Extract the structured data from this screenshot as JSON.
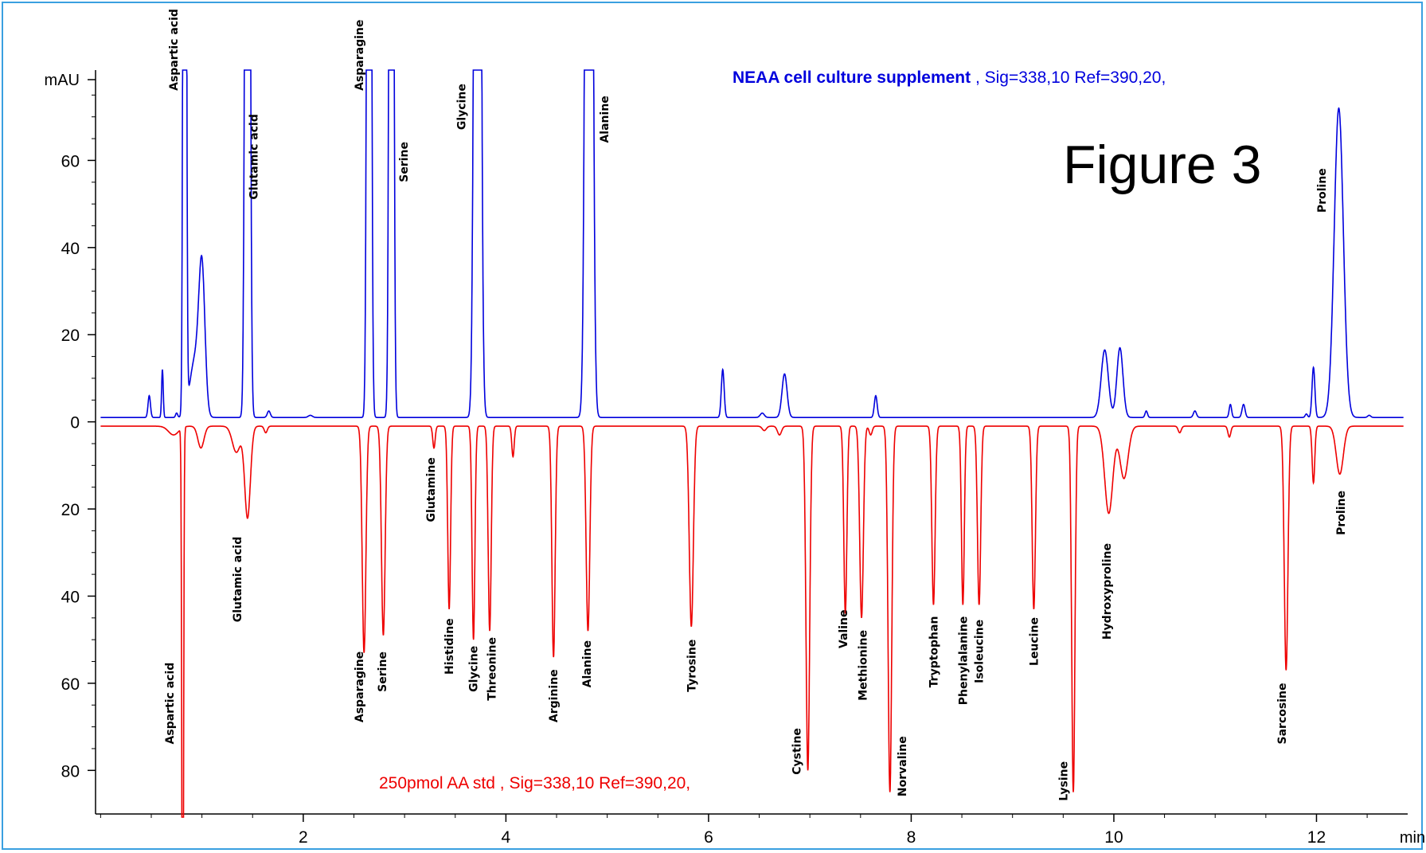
{
  "chart_data": {
    "type": "line",
    "figure_label": "Figure 3",
    "y_unit": "mAU",
    "x_unit": "min",
    "xlim": [
      -0.05,
      12.9
    ],
    "x_ticks": [
      2,
      4,
      6,
      8,
      10,
      12
    ],
    "y_ticks": [
      {
        "value": 60,
        "label": "60"
      },
      {
        "value": 40,
        "label": "40"
      },
      {
        "value": 20,
        "label": "20"
      },
      {
        "value": 0,
        "label": "0"
      },
      {
        "value": -20,
        "label": "20"
      },
      {
        "value": -40,
        "label": "40"
      },
      {
        "value": -60,
        "label": "60"
      },
      {
        "value": -80,
        "label": "80"
      }
    ],
    "ylim": [
      -90,
      80
    ],
    "series": [
      {
        "name": "NEAA cell culture supplement",
        "legend_suffix": " , Sig=338,10 Ref=390,20,",
        "color": "#0000dd",
        "baseline": 1,
        "peaks": [
          {
            "t": 0.48,
            "h": 5,
            "w": 0.012
          },
          {
            "t": 0.61,
            "h": 11,
            "w": 0.008
          },
          {
            "t": 0.75,
            "h": 1,
            "w": 0.01
          },
          {
            "t": 0.83,
            "h": 400,
            "w": 0.012
          },
          {
            "t": 0.93,
            "h": 13,
            "w": 0.05
          },
          {
            "t": 1.0,
            "h": 32,
            "w": 0.03
          },
          {
            "t": 1.45,
            "h": 400,
            "w": 0.018
          },
          {
            "t": 1.66,
            "h": 1.5,
            "w": 0.015
          },
          {
            "t": 2.07,
            "h": 0.5,
            "w": 0.02
          },
          {
            "t": 2.65,
            "h": 400,
            "w": 0.016
          },
          {
            "t": 2.87,
            "h": 400,
            "w": 0.016
          },
          {
            "t": 3.72,
            "h": 400,
            "w": 0.024
          },
          {
            "t": 4.82,
            "h": 400,
            "w": 0.026
          },
          {
            "t": 6.14,
            "h": 11,
            "w": 0.014
          },
          {
            "t": 6.53,
            "h": 1,
            "w": 0.02
          },
          {
            "t": 6.75,
            "h": 10,
            "w": 0.025
          },
          {
            "t": 7.65,
            "h": 5,
            "w": 0.014
          },
          {
            "t": 9.91,
            "h": 15.5,
            "w": 0.035
          },
          {
            "t": 10.06,
            "h": 16,
            "w": 0.03
          },
          {
            "t": 10.32,
            "h": 1.5,
            "w": 0.012
          },
          {
            "t": 10.8,
            "h": 1.5,
            "w": 0.015
          },
          {
            "t": 11.15,
            "h": 3,
            "w": 0.012
          },
          {
            "t": 11.28,
            "h": 3,
            "w": 0.015
          },
          {
            "t": 11.9,
            "h": 0.8,
            "w": 0.012
          },
          {
            "t": 11.97,
            "h": 11.5,
            "w": 0.014
          },
          {
            "t": 12.22,
            "h": 71,
            "w": 0.045
          },
          {
            "t": 12.52,
            "h": 0.5,
            "w": 0.015
          }
        ]
      },
      {
        "name": "250pmol AA std",
        "legend_suffix": "  , Sig=338,10 Ref=390,20,",
        "color": "#ee0000",
        "baseline": -1,
        "peaks": [
          {
            "t": 0.72,
            "h": -2,
            "w": 0.05
          },
          {
            "t": 0.81,
            "h": -150,
            "w": 0.008
          },
          {
            "t": 0.99,
            "h": -5,
            "w": 0.03
          },
          {
            "t": 1.34,
            "h": -6,
            "w": 0.04
          },
          {
            "t": 1.45,
            "h": -21,
            "w": 0.028
          },
          {
            "t": 1.63,
            "h": -1.5,
            "w": 0.015
          },
          {
            "t": 2.6,
            "h": -52,
            "w": 0.018
          },
          {
            "t": 2.79,
            "h": -48,
            "w": 0.018
          },
          {
            "t": 3.29,
            "h": -5,
            "w": 0.012
          },
          {
            "t": 3.44,
            "h": -42,
            "w": 0.014
          },
          {
            "t": 3.68,
            "h": -49,
            "w": 0.014
          },
          {
            "t": 3.84,
            "h": -47,
            "w": 0.015
          },
          {
            "t": 4.07,
            "h": -7,
            "w": 0.012
          },
          {
            "t": 4.47,
            "h": -53,
            "w": 0.016
          },
          {
            "t": 4.81,
            "h": -47,
            "w": 0.018
          },
          {
            "t": 5.83,
            "h": -46,
            "w": 0.02
          },
          {
            "t": 6.55,
            "h": -1,
            "w": 0.02
          },
          {
            "t": 6.7,
            "h": -2,
            "w": 0.02
          },
          {
            "t": 6.98,
            "h": -79,
            "w": 0.018
          },
          {
            "t": 7.35,
            "h": -43,
            "w": 0.015
          },
          {
            "t": 7.51,
            "h": -44,
            "w": 0.018
          },
          {
            "t": 7.6,
            "h": -2,
            "w": 0.015
          },
          {
            "t": 7.79,
            "h": -84,
            "w": 0.018
          },
          {
            "t": 8.22,
            "h": -41,
            "w": 0.016
          },
          {
            "t": 8.51,
            "h": -41,
            "w": 0.014
          },
          {
            "t": 8.67,
            "h": -41,
            "w": 0.016
          },
          {
            "t": 9.21,
            "h": -42,
            "w": 0.016
          },
          {
            "t": 9.6,
            "h": -84,
            "w": 0.016
          },
          {
            "t": 9.95,
            "h": -20,
            "w": 0.04
          },
          {
            "t": 10.1,
            "h": -12,
            "w": 0.04
          },
          {
            "t": 10.65,
            "h": -1.5,
            "w": 0.015
          },
          {
            "t": 11.14,
            "h": -2.5,
            "w": 0.014
          },
          {
            "t": 11.7,
            "h": -56,
            "w": 0.018
          },
          {
            "t": 11.97,
            "h": -13,
            "w": 0.013
          },
          {
            "t": 12.23,
            "h": -11,
            "w": 0.035
          }
        ]
      }
    ],
    "peak_labels_top": [
      {
        "t": 0.72,
        "v": 76,
        "text": "Aspartic acid"
      },
      {
        "t": 1.51,
        "v": 51,
        "text": "Glutamic acid"
      },
      {
        "t": 2.55,
        "v": 76,
        "text": "Asparagine"
      },
      {
        "t": 2.99,
        "v": 55,
        "text": "Serine"
      },
      {
        "t": 3.56,
        "v": 67,
        "text": "Glycine"
      },
      {
        "t": 4.97,
        "v": 64,
        "text": "Alanine"
      },
      {
        "t": 12.05,
        "v": 48,
        "text": "Proline"
      }
    ],
    "peak_labels_bottom": [
      {
        "t": 0.68,
        "v": -74,
        "text": "Aspartic acid"
      },
      {
        "t": 1.35,
        "v": -46,
        "text": "Glutamic acid"
      },
      {
        "t": 2.55,
        "v": -69,
        "text": "Asparagine"
      },
      {
        "t": 2.78,
        "v": -62,
        "text": "Serine"
      },
      {
        "t": 3.26,
        "v": -23,
        "text": "Glutamine"
      },
      {
        "t": 3.44,
        "v": -58,
        "text": "Histidine"
      },
      {
        "t": 3.68,
        "v": -62,
        "text": "Glycine"
      },
      {
        "t": 3.86,
        "v": -64,
        "text": "Threonine"
      },
      {
        "t": 4.47,
        "v": -69,
        "text": "Arginine"
      },
      {
        "t": 4.8,
        "v": -61,
        "text": "Alanine"
      },
      {
        "t": 5.83,
        "v": -62,
        "text": "Tyrosine"
      },
      {
        "t": 6.87,
        "v": -81,
        "text": "Cystine"
      },
      {
        "t": 7.33,
        "v": -52,
        "text": "Valine"
      },
      {
        "t": 7.52,
        "v": -64,
        "text": "Methionine"
      },
      {
        "t": 7.91,
        "v": -86,
        "text": "Norvaline"
      },
      {
        "t": 8.22,
        "v": -61,
        "text": "Tryptophan"
      },
      {
        "t": 8.51,
        "v": -65,
        "text": "Phenylalanine"
      },
      {
        "t": 8.67,
        "v": -60,
        "text": "Isoleucine"
      },
      {
        "t": 9.21,
        "v": -56,
        "text": "Leucine"
      },
      {
        "t": 9.5,
        "v": -87,
        "text": "Lysine"
      },
      {
        "t": 9.93,
        "v": -50,
        "text": "Hydroxyproline"
      },
      {
        "t": 11.66,
        "v": -74,
        "text": "Sarcosine"
      },
      {
        "t": 12.24,
        "v": -26,
        "text": "Proline"
      }
    ]
  }
}
